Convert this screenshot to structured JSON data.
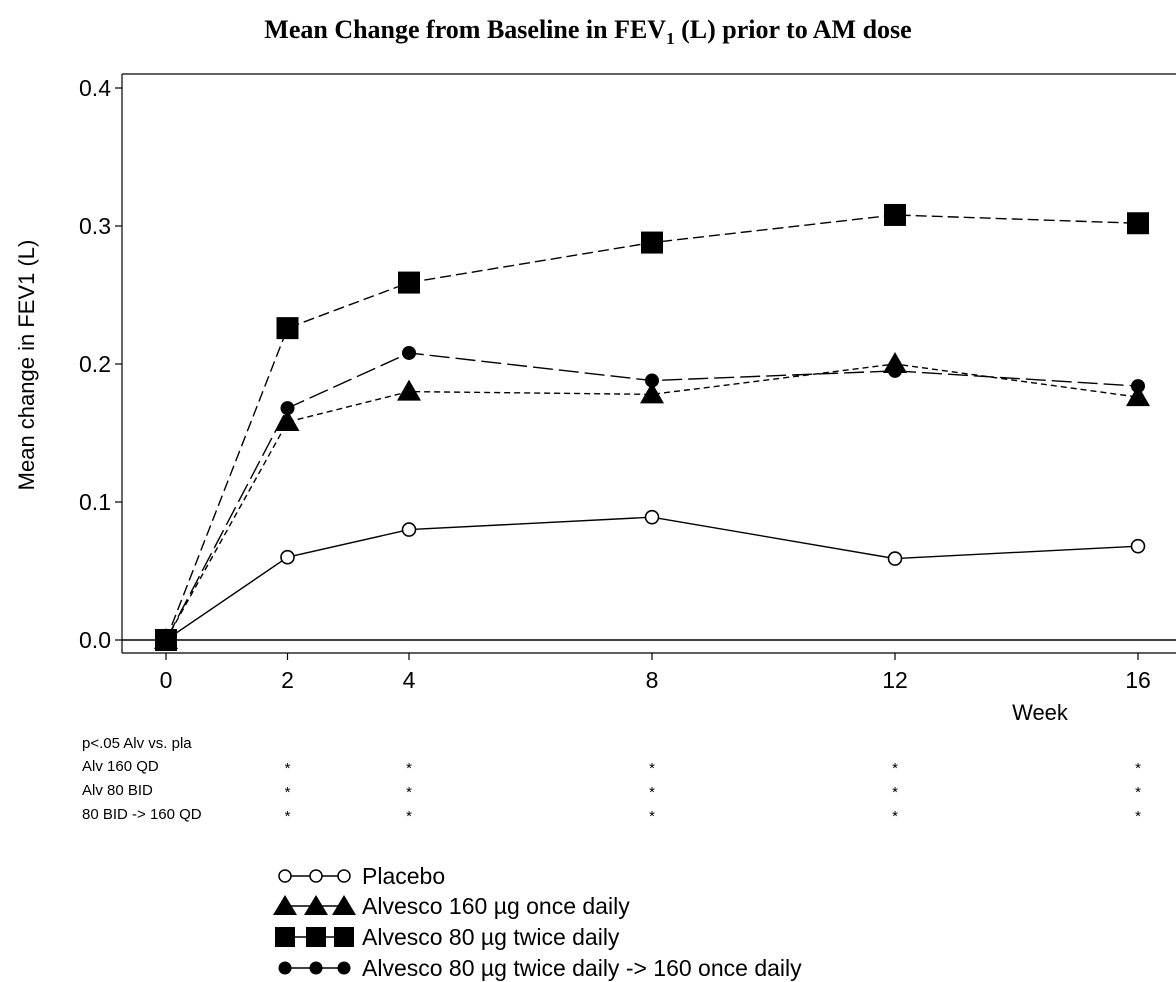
{
  "chart_data": {
    "type": "line",
    "title": {
      "prefix": "Mean Change from Baseline in FEV",
      "subscript": "1",
      "suffix": " (L) prior to AM dose"
    },
    "xlabel": "Week",
    "ylabel": "Mean change in FEV1 (L)",
    "x": [
      0,
      2,
      4,
      8,
      12,
      16
    ],
    "x_ticks": [
      "0",
      "2",
      "4",
      "8",
      "12",
      "16"
    ],
    "y_ticks": [
      "0.0",
      "0.1",
      "0.2",
      "0.3",
      "0.4"
    ],
    "xlim": [
      -0.4,
      16.5
    ],
    "ylim": [
      -0.01,
      0.41
    ],
    "grid": false,
    "legend_position": "bottom",
    "series": [
      {
        "name": "Placebo",
        "marker": "open-circle",
        "line": "solid",
        "values": [
          0.0,
          0.06,
          0.08,
          0.089,
          0.059,
          0.068
        ]
      },
      {
        "name": "Alvesco 160 µg once daily",
        "marker": "triangle",
        "line": "dotted",
        "values": [
          0.0,
          0.158,
          0.18,
          0.178,
          0.2,
          0.176
        ]
      },
      {
        "name": "Alvesco 80 µg twice daily",
        "marker": "square",
        "line": "dashed",
        "values": [
          0.0,
          0.226,
          0.259,
          0.288,
          0.308,
          0.302
        ]
      },
      {
        "name": "Alvesco 80 µg twice daily -> 160 once daily",
        "marker": "filled-circle",
        "line": "long-dash",
        "values": [
          0.0,
          0.168,
          0.208,
          0.188,
          0.195,
          0.184
        ]
      }
    ],
    "significance": {
      "header": "p<.05 Alv vs. pla",
      "mark": "*",
      "rows": [
        {
          "label": "Alv 160 QD",
          "x": [
            2,
            4,
            8,
            12,
            16
          ]
        },
        {
          "label": "Alv 80 BID",
          "x": [
            2,
            4,
            8,
            12,
            16
          ]
        },
        {
          "label": "80 BID -> 160 QD",
          "x": [
            2,
            4,
            8,
            12,
            16
          ]
        }
      ]
    }
  }
}
